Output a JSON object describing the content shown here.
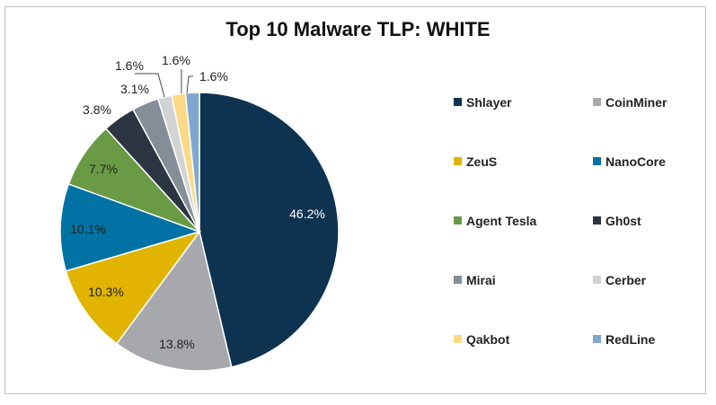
{
  "chart_data": {
    "type": "pie",
    "title": "Top 10 Malware TLP: WHITE",
    "legend_position": "right",
    "slices": [
      {
        "label": "Shlayer",
        "value": 46.2,
        "display": "46.2%",
        "color": "#0d3350"
      },
      {
        "label": "CoinMiner",
        "value": 13.8,
        "display": "13.8%",
        "color": "#a6a8ab"
      },
      {
        "label": "ZeuS",
        "value": 10.3,
        "display": "10.3%",
        "color": "#e0b400"
      },
      {
        "label": "NanoCore",
        "value": 10.1,
        "display": "10.1%",
        "color": "#0072a3"
      },
      {
        "label": "Agent Tesla",
        "value": 7.7,
        "display": "7.7%",
        "color": "#6a9a46"
      },
      {
        "label": "Gh0st",
        "value": 3.8,
        "display": "3.8%",
        "color": "#2b3640"
      },
      {
        "label": "Mirai",
        "value": 3.1,
        "display": "3.1%",
        "color": "#858d96"
      },
      {
        "label": "Cerber",
        "value": 1.6,
        "display": "1.6%",
        "color": "#d1d3d5"
      },
      {
        "label": "Qakbot",
        "value": 1.6,
        "display": "1.6%",
        "color": "#fdd987"
      },
      {
        "label": "RedLine",
        "value": 1.6,
        "display": "1.6%",
        "color": "#80a8cf"
      }
    ]
  }
}
